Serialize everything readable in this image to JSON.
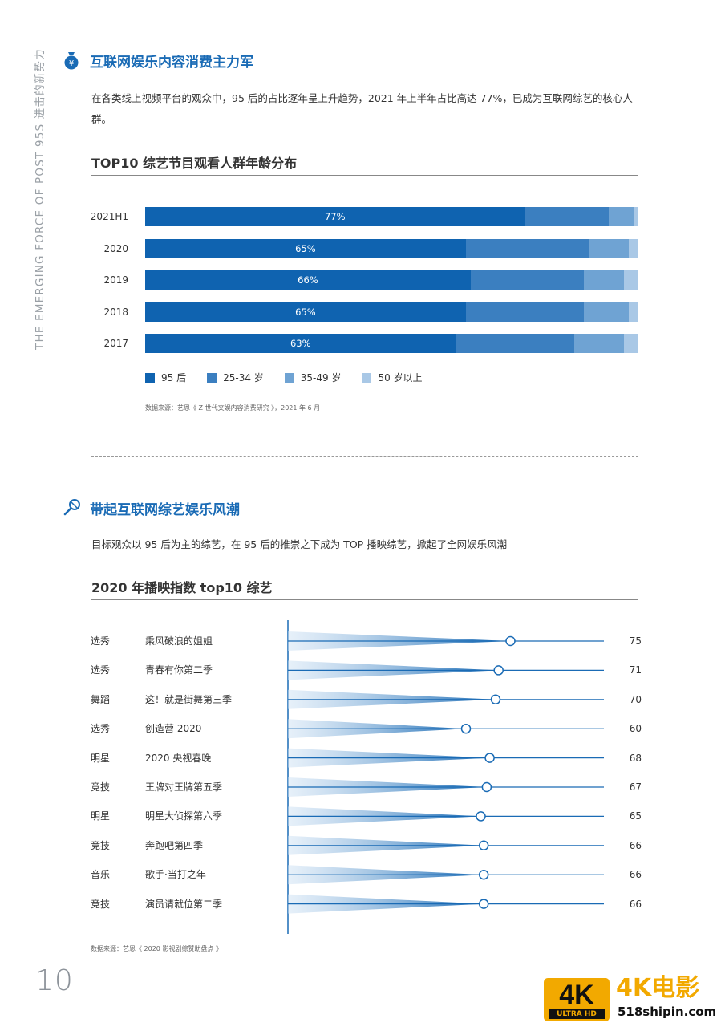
{
  "side_text": "THE EMERGING FORCE OF POST 95S   进击的新势力",
  "section1": {
    "title": "互联网娱乐内容消费主力军",
    "icon": "money-bag-icon",
    "paragraph": "在各类线上视频平台的观众中，95 后的占比逐年呈上升趋势，2021 年上半年占比高达 77%，已成为互联网综艺的核心人群。"
  },
  "chart1_title": "TOP10 综艺节目观看人群年龄分布",
  "chart1_source": "数据来源：艺恩《 Z 世代文娱内容消费研究 》，2021 年 6 月",
  "section2": {
    "title": "带起互联网综艺娱乐风潮",
    "icon": "microphone-icon",
    "paragraph": "目标观众以 95 后为主的综艺，在 95 后的推崇之下成为 TOP 播映综艺，掀起了全网娱乐风潮"
  },
  "chart2_title": "2020 年播映指数 top10 综艺",
  "chart2_source": "数据来源：艺恩《 2020 影视剧综赞助盘点 》",
  "page_number": "10",
  "watermark": {
    "badge": "4K",
    "badge_sub": "ULTRA HD",
    "title": "4K电影",
    "url": "518shipin.com"
  },
  "chart_data": [
    {
      "type": "bar",
      "orientation": "horizontal",
      "stacked": true,
      "title": "TOP10 综艺节目观看人群年龄分布",
      "categories": [
        "2021H1",
        "2020",
        "2019",
        "2018",
        "2017"
      ],
      "series": [
        {
          "name": "95 后",
          "values": [
            77,
            65,
            66,
            65,
            63
          ],
          "color": "#0f63b0",
          "labels": [
            "77%",
            "65%",
            "66%",
            "65%",
            "63%"
          ]
        },
        {
          "name": "25-34 岁",
          "values": [
            17,
            25,
            23,
            24,
            24
          ],
          "color": "#3b7fc0"
        },
        {
          "name": "35-49 岁",
          "values": [
            5,
            8,
            8,
            9,
            10
          ],
          "color": "#6fa3d3"
        },
        {
          "name": "50 岁以上",
          "values": [
            1,
            2,
            3,
            2,
            3
          ],
          "color": "#a9c8e6"
        }
      ],
      "xlim": [
        0,
        100
      ],
      "legend": "bottom"
    },
    {
      "type": "lollipop",
      "title": "2020 年播映指数 top10 综艺",
      "rows": [
        {
          "category": "选秀",
          "name": "乘风破浪的姐姐",
          "value": 75
        },
        {
          "category": "选秀",
          "name": "青春有你第二季",
          "value": 71
        },
        {
          "category": "舞蹈",
          "name": "这！就是街舞第三季",
          "value": 70
        },
        {
          "category": "选秀",
          "name": "创造营 2020",
          "value": 60
        },
        {
          "category": "明星",
          "name": "2020 央视春晚",
          "value": 68
        },
        {
          "category": "竞技",
          "name": "王牌对王牌第五季",
          "value": 67
        },
        {
          "category": "明星",
          "name": "明星大侦探第六季",
          "value": 65
        },
        {
          "category": "竞技",
          "name": "奔跑吧第四季",
          "value": 66
        },
        {
          "category": "音乐",
          "name": "歌手·当打之年",
          "value": 66
        },
        {
          "category": "竞技",
          "name": "演员请就位第二季",
          "value": 66
        }
      ],
      "color": "#1a6bb5"
    }
  ]
}
